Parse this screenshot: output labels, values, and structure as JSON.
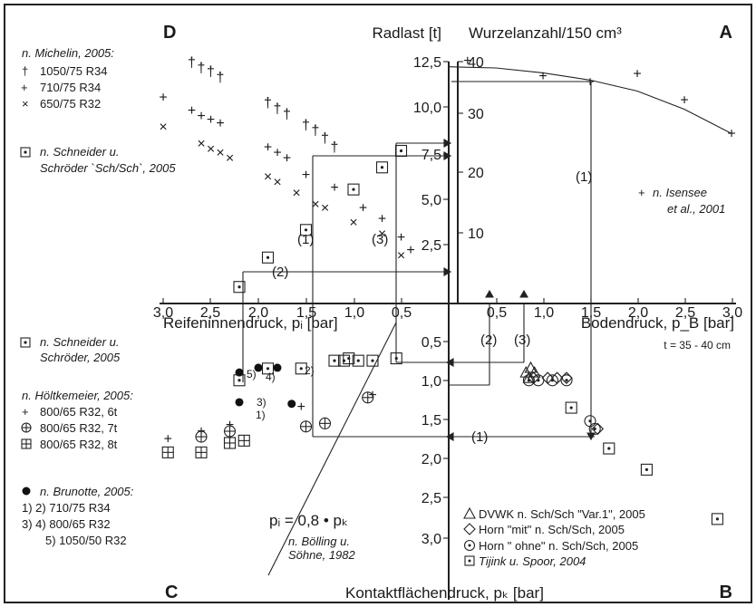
{
  "chart_data": {
    "type": "scatter",
    "quadrant_letters": {
      "A": "A",
      "B": "B",
      "C": "C",
      "D": "D"
    },
    "axes": {
      "radlast_label": "Radlast [t]",
      "radlast_ticks": [
        "12,5",
        "10,0",
        "7,5",
        "5,0",
        "2,5"
      ],
      "wurzel_label": "Wurzelanzahl/150 cm³",
      "wurzel_ticks": [
        "40",
        "30",
        "20",
        "10"
      ],
      "reifen_label": "Reifeninnendruck, pᵢ [bar]",
      "reifen_ticks": [
        "3,0",
        "2,5",
        "2,0",
        "1,5",
        "1,0",
        "0,5"
      ],
      "boden_label": "Bodendruck, p_B [bar]",
      "boden_ticks": [
        "0,5",
        "1,0",
        "1,5",
        "2,0",
        "2,5",
        "3,0"
      ],
      "boden_note": "t = 35 - 40 cm",
      "kontakt_label": "Kontaktflächendruck, pₖ [bar]",
      "kontakt_ticks": [
        "0,5",
        "1,0",
        "1,5",
        "2,0",
        "2,5",
        "3,0"
      ]
    },
    "route_labels": {
      "one": "(1)",
      "two": "(2)",
      "three": "(3)"
    },
    "legend_D": {
      "michelin_head": "n. Michelin, 2005:",
      "m1": "1050/75 R34",
      "m2": "710/75 R34",
      "m3": "650/75 R32",
      "schneider_a": "n. Schneider u.",
      "schneider_b": "Schröder `Sch/Sch`, 2005"
    },
    "legend_A": {
      "isensee_a": "n. Isensee",
      "isensee_b": "et al., 2001"
    },
    "legend_C": {
      "schneider_a": "n. Schneider u.",
      "schneider_b": "Schröder, 2005",
      "hoelt_head": "n. Höltkemeier, 2005:",
      "h1": "800/65 R32, 6t",
      "h2": "800/65 R32, 7t",
      "h3": "800/65 R32, 8t",
      "brunotte_head": "n. Brunotte, 2005:",
      "b1": "1) 2)   710/75 R34",
      "b2": "3) 4)   800/65 R32",
      "b3": "5) 1050/50 R32",
      "line_eq": "pᵢ = 0,8 • pₖ",
      "boelling_a": "n. Bölling u.",
      "boelling_b": "Söhne, 1982"
    },
    "legend_B": {
      "dvwk": "DVWK n. Sch/Sch \"Var.1\", 2005",
      "horn_mit": "Horn \"mit\" n. Sch/Sch, 2005",
      "horn_ohne": "Horn \" ohne\" n. Sch/Sch, 2005",
      "tijink": "Tijink u. Spoor, 2004"
    },
    "brunotte_labels": [
      "1)",
      "2)",
      "3)",
      "4)",
      "5)"
    ],
    "quadrant_D_points": {
      "michelin_1050_75_R34": [
        [
          2.7,
          13.1
        ],
        [
          2.6,
          12.8
        ],
        [
          2.5,
          12.6
        ],
        [
          2.4,
          12.3
        ],
        [
          1.9,
          10.9
        ],
        [
          1.8,
          10.6
        ],
        [
          1.7,
          10.3
        ],
        [
          1.5,
          9.7
        ],
        [
          1.4,
          9.4
        ],
        [
          1.3,
          9.0
        ],
        [
          1.2,
          8.5
        ]
      ],
      "michelin_710_75_R34": [
        [
          3.0,
          11.2
        ],
        [
          2.7,
          10.5
        ],
        [
          2.6,
          10.2
        ],
        [
          2.5,
          10.0
        ],
        [
          2.4,
          9.8
        ],
        [
          1.9,
          8.5
        ],
        [
          1.8,
          8.2
        ],
        [
          1.7,
          7.9
        ],
        [
          1.5,
          7.0
        ],
        [
          1.2,
          6.3
        ],
        [
          0.9,
          5.2
        ],
        [
          0.7,
          4.6
        ],
        [
          0.5,
          3.6
        ],
        [
          0.4,
          2.9
        ]
      ],
      "michelin_650_75_R32": [
        [
          3.0,
          9.6
        ],
        [
          2.6,
          8.7
        ],
        [
          2.5,
          8.4
        ],
        [
          2.4,
          8.2
        ],
        [
          2.3,
          7.9
        ],
        [
          1.9,
          6.9
        ],
        [
          1.8,
          6.6
        ],
        [
          1.6,
          6.0
        ],
        [
          1.4,
          5.4
        ],
        [
          1.3,
          5.2
        ],
        [
          1.0,
          4.4
        ],
        [
          0.7,
          3.8
        ],
        [
          0.5,
          2.6
        ]
      ],
      "schneider_sch_sch_2005": [
        [
          2.2,
          0.9
        ],
        [
          1.9,
          2.5
        ],
        [
          1.5,
          4.0
        ],
        [
          1.0,
          6.2
        ],
        [
          0.7,
          7.4
        ],
        [
          0.5,
          8.3
        ]
      ]
    },
    "quadrant_A_points": {
      "isensee_2001": [
        [
          0.2,
          40.0
        ],
        [
          1.0,
          37.5
        ],
        [
          1.5,
          36.5
        ],
        [
          2.0,
          37.8
        ],
        [
          2.5,
          33.5
        ],
        [
          3.0,
          28.0
        ]
      ],
      "fit_curve": [
        [
          0.0,
          39.0
        ],
        [
          0.5,
          38.8
        ],
        [
          1.0,
          38.0
        ],
        [
          1.5,
          36.8
        ],
        [
          2.0,
          35.0
        ],
        [
          2.5,
          32.0
        ],
        [
          3.0,
          28.0
        ]
      ]
    },
    "quadrant_C_points": {
      "schneider_schroeder_2005": [
        [
          2.2,
          0.98
        ],
        [
          1.9,
          0.83
        ],
        [
          1.55,
          0.83
        ],
        [
          1.2,
          0.73
        ],
        [
          1.1,
          0.73
        ],
        [
          1.05,
          0.7
        ],
        [
          0.95,
          0.73
        ],
        [
          0.8,
          0.73
        ],
        [
          0.55,
          0.7
        ]
      ],
      "hoeltkemeier_6t": [
        [
          2.95,
          1.73
        ],
        [
          2.6,
          1.63
        ],
        [
          2.3,
          1.55
        ],
        [
          1.55,
          1.32
        ],
        [
          0.8,
          1.17
        ]
      ],
      "hoeltkemeier_7t": [
        [
          2.6,
          1.7
        ],
        [
          2.3,
          1.63
        ],
        [
          1.5,
          1.57
        ],
        [
          1.3,
          1.53
        ],
        [
          0.85,
          1.2
        ]
      ],
      "hoeltkemeier_8t": [
        [
          2.95,
          1.9
        ],
        [
          2.6,
          1.9
        ],
        [
          2.3,
          1.78
        ],
        [
          2.15,
          1.75
        ]
      ],
      "brunotte_2005": [
        [
          2.2,
          1.26
        ],
        [
          1.65,
          1.28
        ],
        [
          2.2,
          0.88
        ],
        [
          2.0,
          0.82
        ],
        [
          1.8,
          0.82
        ]
      ]
    },
    "quadrant_B_points": {
      "dvwk_var1": [
        [
          0.82,
          0.88
        ],
        [
          0.87,
          0.82
        ],
        [
          0.91,
          0.88
        ],
        [
          0.85,
          0.95
        ]
      ],
      "horn_mit": [
        [
          0.9,
          0.95
        ],
        [
          1.05,
          0.95
        ],
        [
          1.15,
          0.95
        ],
        [
          1.25,
          0.95
        ],
        [
          1.58,
          1.6
        ]
      ],
      "horn_ohne": [
        [
          0.85,
          0.98
        ],
        [
          0.95,
          0.98
        ],
        [
          1.1,
          0.98
        ],
        [
          1.25,
          0.98
        ],
        [
          1.5,
          1.5
        ],
        [
          1.55,
          1.6
        ]
      ],
      "tijink_spoor_2004": [
        [
          1.3,
          1.33
        ],
        [
          1.7,
          1.85
        ],
        [
          2.1,
          2.12
        ],
        [
          2.85,
          2.75
        ]
      ]
    }
  }
}
